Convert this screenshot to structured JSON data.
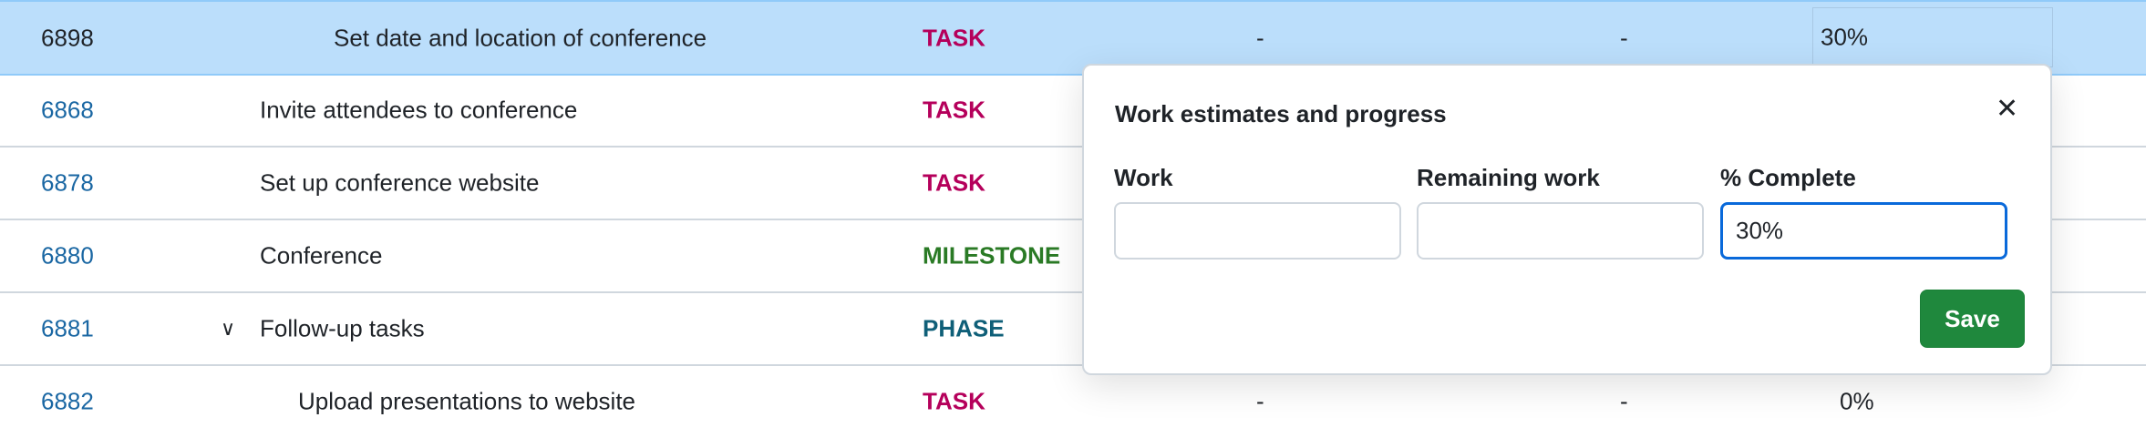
{
  "rows": [
    {
      "id": "6898",
      "subject": "Set date and location of conference",
      "type": "TASK",
      "work": "-",
      "remaining": "-",
      "percent": "30%"
    },
    {
      "id": "6868",
      "subject": "Invite attendees to conference",
      "type": "TASK"
    },
    {
      "id": "6878",
      "subject": "Set up conference website",
      "type": "TASK"
    },
    {
      "id": "6880",
      "subject": "Conference",
      "type": "MILESTONE"
    },
    {
      "id": "6881",
      "subject": "Follow-up tasks",
      "type": "PHASE",
      "expand_icon": "chevron-down-icon"
    },
    {
      "id": "6882",
      "subject": "Upload presentations to website",
      "type": "TASK",
      "work": "-",
      "remaining": "-",
      "percent": "0%"
    }
  ],
  "type_colors": {
    "TASK": "#b5005b",
    "MILESTONE": "#2a7a25",
    "PHASE": "#0f5f78"
  },
  "popup": {
    "title": "Work estimates and progress",
    "close_icon": "close-icon",
    "fields": {
      "work": {
        "label": "Work",
        "value": ""
      },
      "remaining": {
        "label": "Remaining work",
        "value": ""
      },
      "percent": {
        "label": "% Complete",
        "value": "30%"
      }
    },
    "save_label": "Save",
    "save_color": "#1f883d"
  },
  "selection_color": "#bbdefb"
}
